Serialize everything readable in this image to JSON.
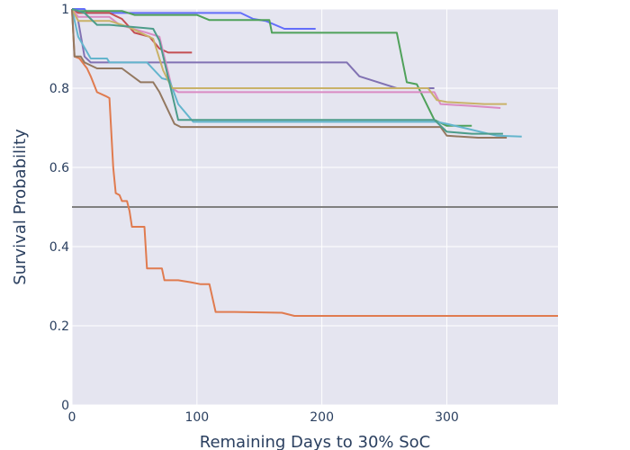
{
  "chart_data": {
    "type": "line",
    "title": "",
    "xlabel": "Remaining Days to 30% SoC",
    "ylabel": "Survival Probability",
    "xlim": [
      0,
      389
    ],
    "ylim": [
      0,
      1
    ],
    "xticks": [
      0,
      100,
      200,
      300
    ],
    "yticks": [
      0,
      0.2,
      0.4,
      0.6,
      0.8,
      1
    ],
    "ytick_labels": [
      "0",
      "0.2",
      "0.4",
      "0.6",
      "0.8",
      "1"
    ],
    "grid": true,
    "legend": "none",
    "background": "#e5e5f0",
    "gridcolor": "#ffffff",
    "reference_line": {
      "y": 0.5,
      "color": "#808080"
    },
    "series": [
      {
        "color": "#636efa",
        "points": [
          [
            0,
            1
          ],
          [
            10,
            1
          ],
          [
            12,
            0.99
          ],
          [
            135,
            0.99
          ],
          [
            145,
            0.975
          ],
          [
            155,
            0.97
          ],
          [
            170,
            0.95
          ],
          [
            195,
            0.95
          ]
        ]
      },
      {
        "color": "#e07b4f",
        "points": [
          [
            0,
            1
          ],
          [
            2,
            0.88
          ],
          [
            6,
            0.875
          ],
          [
            12,
            0.85
          ],
          [
            15,
            0.83
          ],
          [
            20,
            0.79
          ],
          [
            27,
            0.78
          ],
          [
            30,
            0.775
          ],
          [
            33,
            0.6
          ],
          [
            35,
            0.535
          ],
          [
            38,
            0.53
          ],
          [
            40,
            0.515
          ],
          [
            44,
            0.515
          ],
          [
            46,
            0.49
          ],
          [
            48,
            0.45
          ],
          [
            58,
            0.45
          ],
          [
            60,
            0.345
          ],
          [
            72,
            0.345
          ],
          [
            74,
            0.315
          ],
          [
            85,
            0.315
          ],
          [
            95,
            0.31
          ],
          [
            103,
            0.305
          ],
          [
            110,
            0.305
          ],
          [
            115,
            0.235
          ],
          [
            130,
            0.235
          ],
          [
            168,
            0.233
          ],
          [
            178,
            0.225
          ],
          [
            389,
            0.225
          ]
        ]
      },
      {
        "color": "#4fa15a",
        "points": [
          [
            0,
            1
          ],
          [
            5,
            0.995
          ],
          [
            40,
            0.995
          ],
          [
            50,
            0.985
          ],
          [
            100,
            0.985
          ],
          [
            110,
            0.972
          ],
          [
            158,
            0.972
          ],
          [
            160,
            0.94
          ],
          [
            260,
            0.94
          ],
          [
            268,
            0.815
          ],
          [
            276,
            0.81
          ],
          [
            290,
            0.72
          ],
          [
            300,
            0.705
          ],
          [
            320,
            0.705
          ]
        ]
      },
      {
        "color": "#c44e52",
        "points": [
          [
            0,
            1
          ],
          [
            5,
            0.99
          ],
          [
            30,
            0.99
          ],
          [
            40,
            0.975
          ],
          [
            50,
            0.94
          ],
          [
            62,
            0.93
          ],
          [
            70,
            0.9
          ],
          [
            77,
            0.89
          ],
          [
            96,
            0.89
          ]
        ]
      },
      {
        "color": "#8172b3",
        "points": [
          [
            0,
            1
          ],
          [
            5,
            0.97
          ],
          [
            10,
            0.88
          ],
          [
            15,
            0.865
          ],
          [
            30,
            0.865
          ],
          [
            70,
            0.865
          ],
          [
            220,
            0.865
          ],
          [
            230,
            0.83
          ],
          [
            240,
            0.82
          ],
          [
            260,
            0.8
          ],
          [
            290,
            0.8
          ]
        ]
      },
      {
        "color": "#da8bc3",
        "points": [
          [
            0,
            1
          ],
          [
            5,
            0.98
          ],
          [
            30,
            0.98
          ],
          [
            38,
            0.96
          ],
          [
            60,
            0.94
          ],
          [
            70,
            0.93
          ],
          [
            80,
            0.8
          ],
          [
            85,
            0.79
          ],
          [
            290,
            0.79
          ],
          [
            295,
            0.76
          ],
          [
            320,
            0.755
          ],
          [
            343,
            0.75
          ]
        ]
      },
      {
        "color": "#64b5cd",
        "points": [
          [
            0,
            1
          ],
          [
            5,
            0.93
          ],
          [
            15,
            0.875
          ],
          [
            28,
            0.875
          ],
          [
            30,
            0.865
          ],
          [
            60,
            0.865
          ],
          [
            72,
            0.825
          ],
          [
            78,
            0.82
          ],
          [
            85,
            0.76
          ],
          [
            97,
            0.715
          ],
          [
            240,
            0.715
          ],
          [
            292,
            0.715
          ],
          [
            300,
            0.71
          ],
          [
            340,
            0.68
          ],
          [
            360,
            0.678
          ]
        ]
      },
      {
        "color": "#c9b268",
        "points": [
          [
            0,
            1
          ],
          [
            5,
            0.97
          ],
          [
            20,
            0.97
          ],
          [
            30,
            0.97
          ],
          [
            45,
            0.955
          ],
          [
            65,
            0.925
          ],
          [
            73,
            0.845
          ],
          [
            80,
            0.8
          ],
          [
            285,
            0.8
          ],
          [
            292,
            0.77
          ],
          [
            300,
            0.765
          ],
          [
            330,
            0.76
          ],
          [
            348,
            0.76
          ]
        ]
      },
      {
        "color": "#937860",
        "points": [
          [
            0,
            1
          ],
          [
            2,
            0.88
          ],
          [
            7,
            0.88
          ],
          [
            10,
            0.865
          ],
          [
            20,
            0.85
          ],
          [
            40,
            0.85
          ],
          [
            55,
            0.815
          ],
          [
            65,
            0.815
          ],
          [
            70,
            0.79
          ],
          [
            82,
            0.71
          ],
          [
            87,
            0.702
          ],
          [
            240,
            0.702
          ],
          [
            295,
            0.702
          ],
          [
            300,
            0.68
          ],
          [
            325,
            0.675
          ],
          [
            348,
            0.675
          ]
        ]
      },
      {
        "color": "#4c9c8a",
        "points": [
          [
            0,
            1
          ],
          [
            10,
            0.99
          ],
          [
            20,
            0.96
          ],
          [
            30,
            0.96
          ],
          [
            65,
            0.95
          ],
          [
            70,
            0.92
          ],
          [
            85,
            0.72
          ],
          [
            95,
            0.72
          ],
          [
            290,
            0.72
          ],
          [
            300,
            0.69
          ],
          [
            320,
            0.685
          ],
          [
            345,
            0.685
          ]
        ]
      }
    ]
  }
}
